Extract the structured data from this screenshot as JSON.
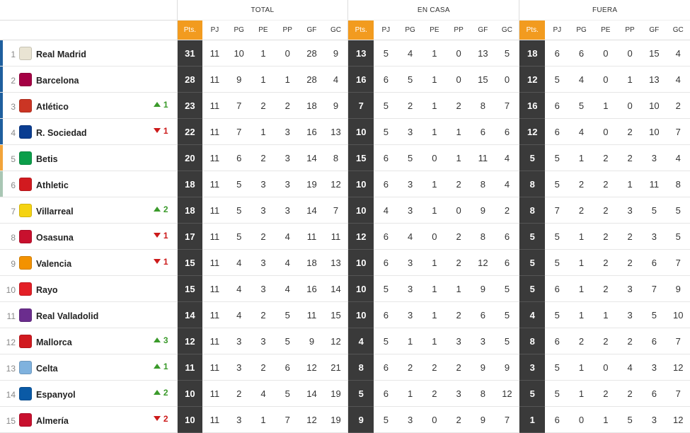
{
  "sections": {
    "total": "TOTAL",
    "home": "EN CASA",
    "away": "FUERA"
  },
  "columns": {
    "pts": "Pts.",
    "pj": "PJ",
    "pg": "PG",
    "pe": "PE",
    "pp": "PP",
    "gf": "GF",
    "gc": "GC"
  },
  "zone_colors": {
    "ucl": "#1f5f9e",
    "uel": "#f2a43a",
    "uecl": "#a9c6b4"
  },
  "crest_colors": {
    "real-madrid": "#e9e4d3",
    "barcelona": "#a50044",
    "atletico": "#cb3524",
    "real-sociedad": "#0a3d91",
    "betis": "#0b9e4a",
    "athletic": "#d21a1f",
    "villarreal": "#f5d312",
    "osasuna": "#c8102e",
    "valencia": "#f39200",
    "rayo": "#e31f26",
    "real-valladolid": "#6b2d8e",
    "mallorca": "#d1191f",
    "celta": "#7fb2de",
    "espanyol": "#0a5aa6",
    "almeria": "#c8102e"
  },
  "teams": [
    {
      "pos": "1",
      "name": "Real Madrid",
      "crest": "real-madrid",
      "zone": "ucl",
      "trend": "",
      "trend_dir": "",
      "total": [
        "31",
        "11",
        "10",
        "1",
        "0",
        "28",
        "9"
      ],
      "home": [
        "13",
        "5",
        "4",
        "1",
        "0",
        "13",
        "5"
      ],
      "away": [
        "18",
        "6",
        "6",
        "0",
        "0",
        "15",
        "4"
      ]
    },
    {
      "pos": "2",
      "name": "Barcelona",
      "crest": "barcelona",
      "zone": "ucl",
      "trend": "",
      "trend_dir": "",
      "total": [
        "28",
        "11",
        "9",
        "1",
        "1",
        "28",
        "4"
      ],
      "home": [
        "16",
        "6",
        "5",
        "1",
        "0",
        "15",
        "0"
      ],
      "away": [
        "12",
        "5",
        "4",
        "0",
        "1",
        "13",
        "4"
      ]
    },
    {
      "pos": "3",
      "name": "Atlético",
      "crest": "atletico",
      "zone": "ucl",
      "trend": "1",
      "trend_dir": "up",
      "total": [
        "23",
        "11",
        "7",
        "2",
        "2",
        "18",
        "9"
      ],
      "home": [
        "7",
        "5",
        "2",
        "1",
        "2",
        "8",
        "7"
      ],
      "away": [
        "16",
        "6",
        "5",
        "1",
        "0",
        "10",
        "2"
      ]
    },
    {
      "pos": "4",
      "name": "R. Sociedad",
      "crest": "real-sociedad",
      "zone": "ucl",
      "trend": "1",
      "trend_dir": "down",
      "total": [
        "22",
        "11",
        "7",
        "1",
        "3",
        "16",
        "13"
      ],
      "home": [
        "10",
        "5",
        "3",
        "1",
        "1",
        "6",
        "6"
      ],
      "away": [
        "12",
        "6",
        "4",
        "0",
        "2",
        "10",
        "7"
      ]
    },
    {
      "pos": "5",
      "name": "Betis",
      "crest": "betis",
      "zone": "uel",
      "trend": "",
      "trend_dir": "",
      "total": [
        "20",
        "11",
        "6",
        "2",
        "3",
        "14",
        "8"
      ],
      "home": [
        "15",
        "6",
        "5",
        "0",
        "1",
        "11",
        "4"
      ],
      "away": [
        "5",
        "5",
        "1",
        "2",
        "2",
        "3",
        "4"
      ]
    },
    {
      "pos": "6",
      "name": "Athletic",
      "crest": "athletic",
      "zone": "uecl",
      "trend": "",
      "trend_dir": "",
      "total": [
        "18",
        "11",
        "5",
        "3",
        "3",
        "19",
        "12"
      ],
      "home": [
        "10",
        "6",
        "3",
        "1",
        "2",
        "8",
        "4"
      ],
      "away": [
        "8",
        "5",
        "2",
        "2",
        "1",
        "11",
        "8"
      ]
    },
    {
      "pos": "7",
      "name": "Villarreal",
      "crest": "villarreal",
      "zone": "",
      "trend": "2",
      "trend_dir": "up",
      "total": [
        "18",
        "11",
        "5",
        "3",
        "3",
        "14",
        "7"
      ],
      "home": [
        "10",
        "4",
        "3",
        "1",
        "0",
        "9",
        "2"
      ],
      "away": [
        "8",
        "7",
        "2",
        "2",
        "3",
        "5",
        "5"
      ]
    },
    {
      "pos": "8",
      "name": "Osasuna",
      "crest": "osasuna",
      "zone": "",
      "trend": "1",
      "trend_dir": "down",
      "total": [
        "17",
        "11",
        "5",
        "2",
        "4",
        "11",
        "11"
      ],
      "home": [
        "12",
        "6",
        "4",
        "0",
        "2",
        "8",
        "6"
      ],
      "away": [
        "5",
        "5",
        "1",
        "2",
        "2",
        "3",
        "5"
      ]
    },
    {
      "pos": "9",
      "name": "Valencia",
      "crest": "valencia",
      "zone": "",
      "trend": "1",
      "trend_dir": "down",
      "total": [
        "15",
        "11",
        "4",
        "3",
        "4",
        "18",
        "13"
      ],
      "home": [
        "10",
        "6",
        "3",
        "1",
        "2",
        "12",
        "6"
      ],
      "away": [
        "5",
        "5",
        "1",
        "2",
        "2",
        "6",
        "7"
      ]
    },
    {
      "pos": "10",
      "name": "Rayo",
      "crest": "rayo",
      "zone": "",
      "trend": "",
      "trend_dir": "",
      "total": [
        "15",
        "11",
        "4",
        "3",
        "4",
        "16",
        "14"
      ],
      "home": [
        "10",
        "5",
        "3",
        "1",
        "1",
        "9",
        "5"
      ],
      "away": [
        "5",
        "6",
        "1",
        "2",
        "3",
        "7",
        "9"
      ]
    },
    {
      "pos": "11",
      "name": "Real Valladolid",
      "crest": "real-valladolid",
      "zone": "",
      "trend": "",
      "trend_dir": "",
      "total": [
        "14",
        "11",
        "4",
        "2",
        "5",
        "11",
        "15"
      ],
      "home": [
        "10",
        "6",
        "3",
        "1",
        "2",
        "6",
        "5"
      ],
      "away": [
        "4",
        "5",
        "1",
        "1",
        "3",
        "5",
        "10"
      ]
    },
    {
      "pos": "12",
      "name": "Mallorca",
      "crest": "mallorca",
      "zone": "",
      "trend": "3",
      "trend_dir": "up",
      "total": [
        "12",
        "11",
        "3",
        "3",
        "5",
        "9",
        "12"
      ],
      "home": [
        "4",
        "5",
        "1",
        "1",
        "3",
        "3",
        "5"
      ],
      "away": [
        "8",
        "6",
        "2",
        "2",
        "2",
        "6",
        "7"
      ]
    },
    {
      "pos": "13",
      "name": "Celta",
      "crest": "celta",
      "zone": "",
      "trend": "1",
      "trend_dir": "up",
      "total": [
        "11",
        "11",
        "3",
        "2",
        "6",
        "12",
        "21"
      ],
      "home": [
        "8",
        "6",
        "2",
        "2",
        "2",
        "9",
        "9"
      ],
      "away": [
        "3",
        "5",
        "1",
        "0",
        "4",
        "3",
        "12"
      ]
    },
    {
      "pos": "14",
      "name": "Espanyol",
      "crest": "espanyol",
      "zone": "",
      "trend": "2",
      "trend_dir": "up",
      "total": [
        "10",
        "11",
        "2",
        "4",
        "5",
        "14",
        "19"
      ],
      "home": [
        "5",
        "6",
        "1",
        "2",
        "3",
        "8",
        "12"
      ],
      "away": [
        "5",
        "5",
        "1",
        "2",
        "2",
        "6",
        "7"
      ]
    },
    {
      "pos": "15",
      "name": "Almería",
      "crest": "almeria",
      "zone": "",
      "trend": "2",
      "trend_dir": "down",
      "total": [
        "10",
        "11",
        "3",
        "1",
        "7",
        "12",
        "19"
      ],
      "home": [
        "9",
        "5",
        "3",
        "0",
        "2",
        "9",
        "7"
      ],
      "away": [
        "1",
        "6",
        "0",
        "1",
        "5",
        "3",
        "12"
      ]
    }
  ]
}
